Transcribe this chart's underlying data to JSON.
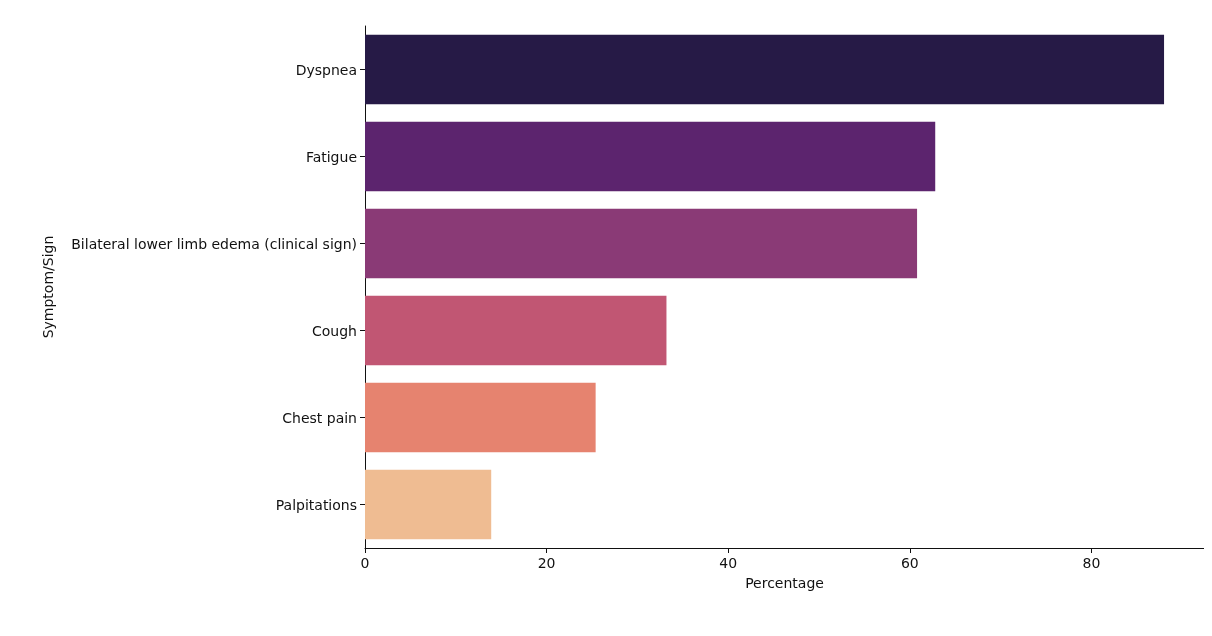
{
  "chart_data": {
    "type": "bar",
    "orientation": "horizontal",
    "xlabel": "Percentage",
    "ylabel": "Symptom/Sign",
    "categories": [
      "Dyspnea",
      "Fatigue",
      "Bilateral lower limb edema (clinical sign)",
      "Cough",
      "Chest pain",
      "Palpitations"
    ],
    "values": [
      88.0,
      62.8,
      60.8,
      33.2,
      25.4,
      13.9
    ],
    "colors": [
      "#261a46",
      "#5c246e",
      "#8a3a76",
      "#c15673",
      "#e6836f",
      "#efbc92"
    ],
    "xlim": [
      0,
      92.4
    ],
    "xticks": [
      0,
      20,
      40,
      60,
      80
    ],
    "grid": false
  }
}
